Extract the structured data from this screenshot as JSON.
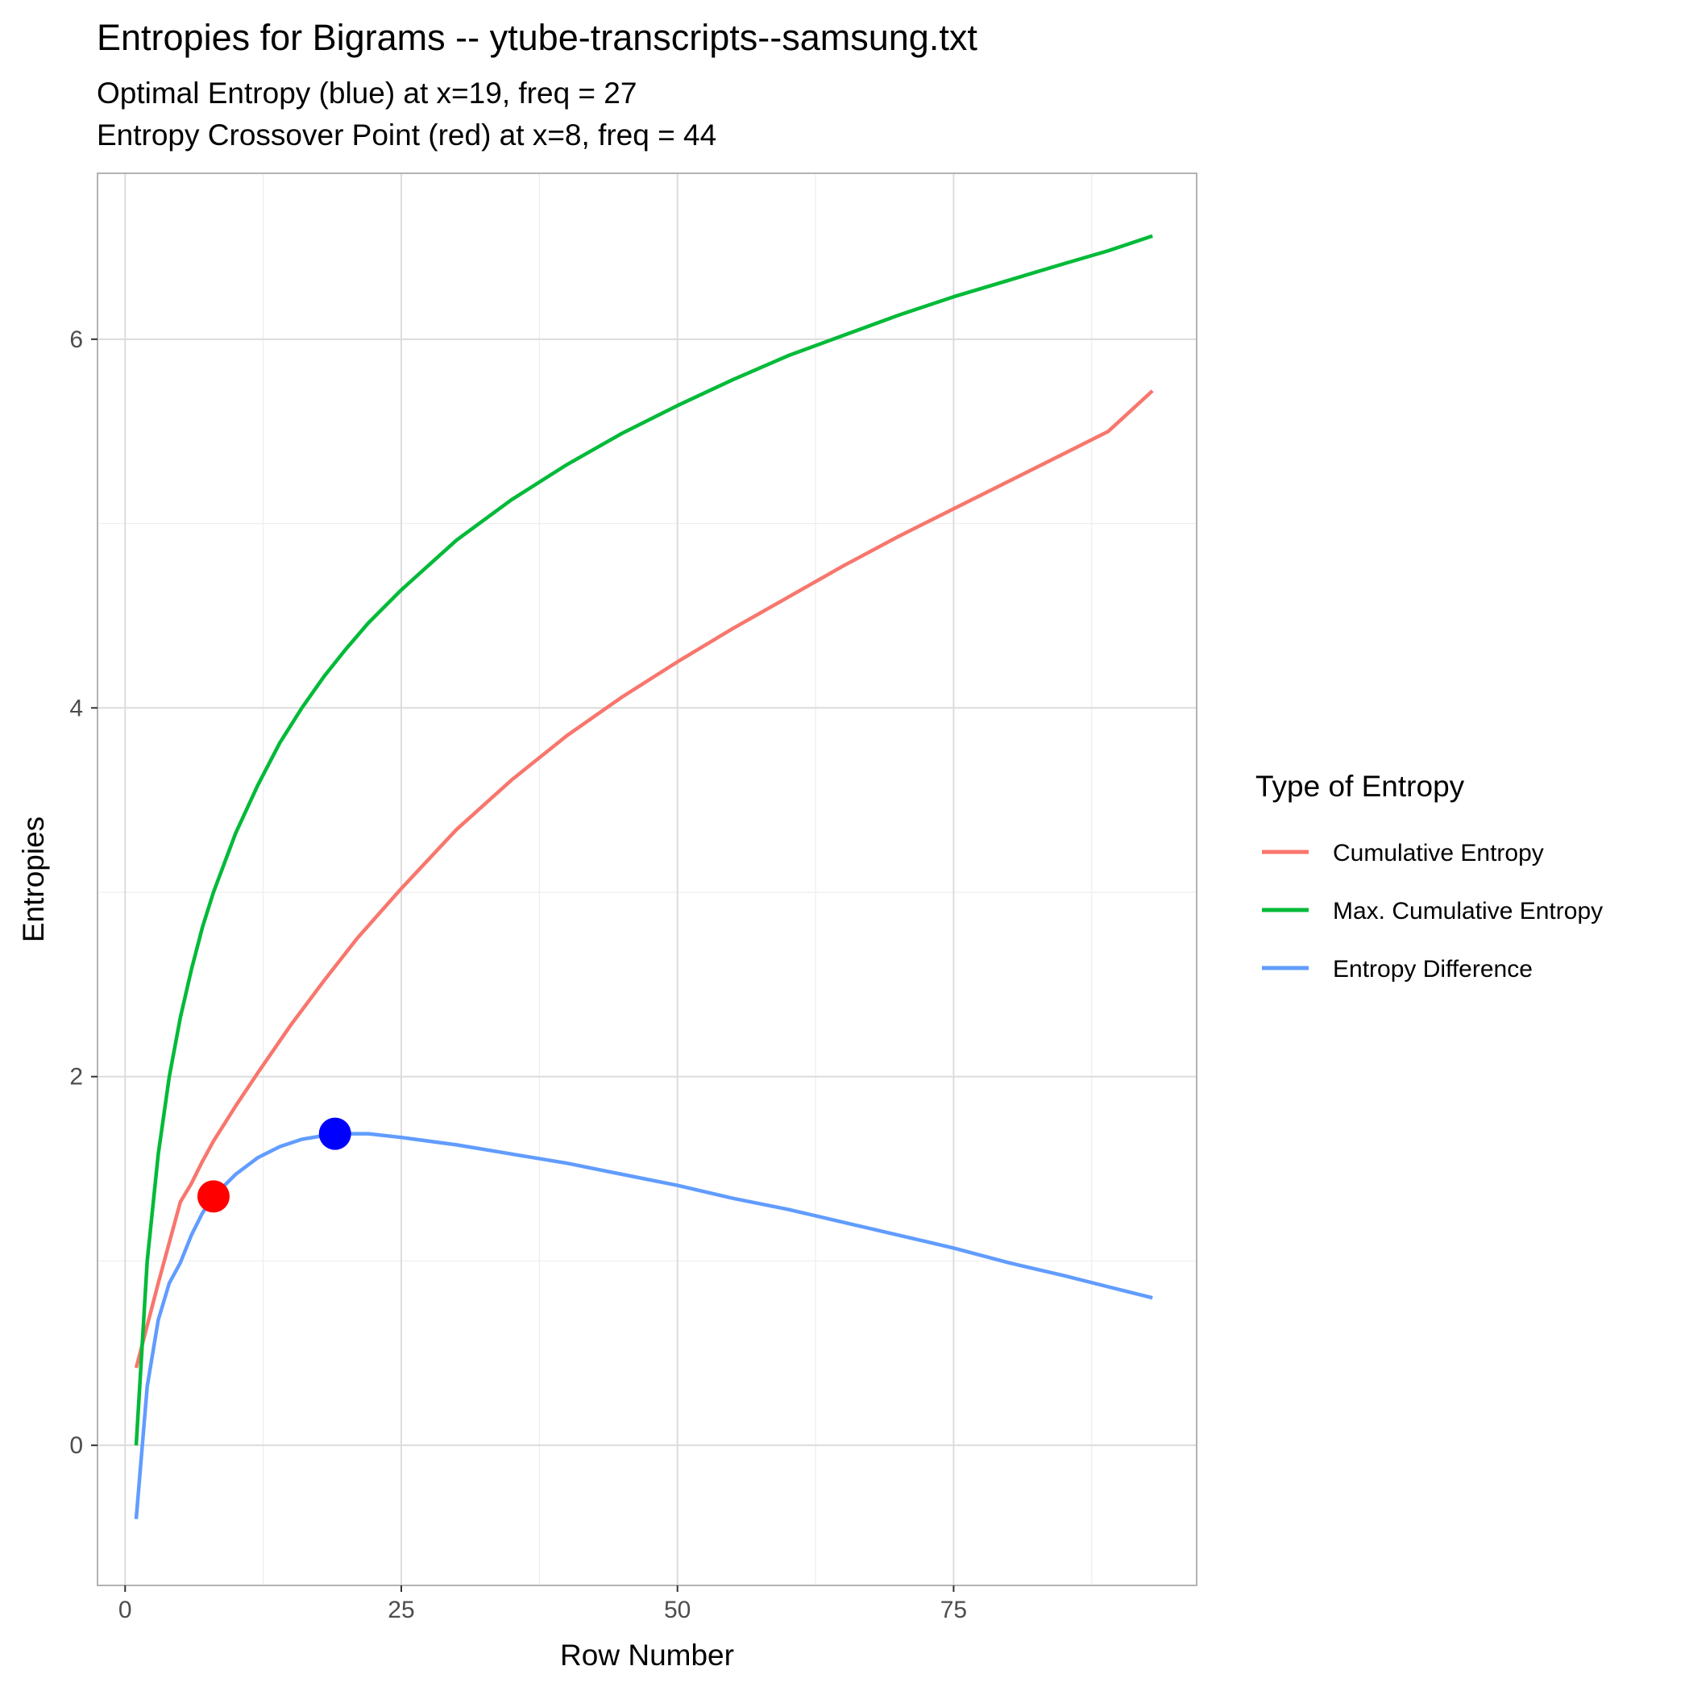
{
  "colors": {
    "cumulative": "#F8766D",
    "max_cumulative": "#00BA38",
    "difference": "#619CFF",
    "optimal_point": "#0000FF",
    "crossover_point": "#FF0000"
  },
  "chart_data": {
    "type": "line",
    "title": "Entropies for Bigrams -- ytube-transcripts--samsung.txt",
    "subtitle_lines": [
      "Optimal Entropy (blue) at x=19, freq = 27",
      "Entropy Crossover Point (red) at x=8, freq = 44"
    ],
    "xlabel": "Row Number",
    "ylabel": "Entropies",
    "xlim": [
      -2.5,
      97
    ],
    "ylim": [
      -0.76,
      6.9
    ],
    "x_ticks": [
      0,
      25,
      50,
      75
    ],
    "y_ticks": [
      0,
      2,
      4,
      6
    ],
    "x_minor_ticks": [
      12.5,
      37.5,
      62.5,
      87.5
    ],
    "y_minor_ticks": [
      1,
      3,
      5
    ],
    "grid": true,
    "legend": {
      "title": "Type of Entropy",
      "position": "right"
    },
    "series": [
      {
        "name": "Cumulative Entropy",
        "color_key": "cumulative",
        "points": [
          [
            1,
            0.42
          ],
          [
            2,
            0.65
          ],
          [
            3,
            0.88
          ],
          [
            4,
            1.1
          ],
          [
            5,
            1.32
          ],
          [
            6,
            1.42
          ],
          [
            7,
            1.54
          ],
          [
            8,
            1.65
          ],
          [
            10,
            1.84
          ],
          [
            12,
            2.02
          ],
          [
            15,
            2.28
          ],
          [
            18,
            2.52
          ],
          [
            21,
            2.75
          ],
          [
            25,
            3.02
          ],
          [
            30,
            3.34
          ],
          [
            35,
            3.61
          ],
          [
            40,
            3.85
          ],
          [
            45,
            4.06
          ],
          [
            50,
            4.25
          ],
          [
            55,
            4.43
          ],
          [
            60,
            4.6
          ],
          [
            65,
            4.77
          ],
          [
            70,
            4.93
          ],
          [
            75,
            5.08
          ],
          [
            80,
            5.23
          ],
          [
            85,
            5.38
          ],
          [
            89,
            5.5
          ],
          [
            93,
            5.72
          ]
        ]
      },
      {
        "name": "Max. Cumulative Entropy",
        "color_key": "max_cumulative",
        "points": [
          [
            1,
            0.0
          ],
          [
            2,
            1.0
          ],
          [
            3,
            1.58
          ],
          [
            4,
            2.0
          ],
          [
            5,
            2.32
          ],
          [
            6,
            2.58
          ],
          [
            7,
            2.81
          ],
          [
            8,
            3.0
          ],
          [
            10,
            3.32
          ],
          [
            12,
            3.58
          ],
          [
            14,
            3.81
          ],
          [
            16,
            4.0
          ],
          [
            18,
            4.17
          ],
          [
            20,
            4.32
          ],
          [
            22,
            4.46
          ],
          [
            25,
            4.64
          ],
          [
            30,
            4.91
          ],
          [
            35,
            5.13
          ],
          [
            40,
            5.32
          ],
          [
            45,
            5.49
          ],
          [
            50,
            5.64
          ],
          [
            55,
            5.78
          ],
          [
            60,
            5.91
          ],
          [
            65,
            6.02
          ],
          [
            70,
            6.13
          ],
          [
            75,
            6.23
          ],
          [
            80,
            6.32
          ],
          [
            85,
            6.41
          ],
          [
            89,
            6.48
          ],
          [
            93,
            6.56
          ]
        ]
      },
      {
        "name": "Entropy Difference",
        "color_key": "difference",
        "points": [
          [
            1,
            -0.4
          ],
          [
            2,
            0.32
          ],
          [
            3,
            0.68
          ],
          [
            4,
            0.88
          ],
          [
            5,
            0.99
          ],
          [
            6,
            1.14
          ],
          [
            7,
            1.26
          ],
          [
            8,
            1.35
          ],
          [
            10,
            1.47
          ],
          [
            12,
            1.56
          ],
          [
            14,
            1.62
          ],
          [
            16,
            1.66
          ],
          [
            19,
            1.69
          ],
          [
            22,
            1.69
          ],
          [
            25,
            1.67
          ],
          [
            30,
            1.63
          ],
          [
            35,
            1.58
          ],
          [
            40,
            1.53
          ],
          [
            45,
            1.47
          ],
          [
            50,
            1.41
          ],
          [
            55,
            1.34
          ],
          [
            60,
            1.28
          ],
          [
            65,
            1.21
          ],
          [
            70,
            1.14
          ],
          [
            75,
            1.07
          ],
          [
            80,
            0.99
          ],
          [
            85,
            0.92
          ],
          [
            89,
            0.86
          ],
          [
            93,
            0.8
          ]
        ]
      }
    ],
    "highlight_points": [
      {
        "x": 19,
        "y": 1.69,
        "color_key": "optimal_point"
      },
      {
        "x": 8,
        "y": 1.35,
        "color_key": "crossover_point"
      }
    ]
  }
}
